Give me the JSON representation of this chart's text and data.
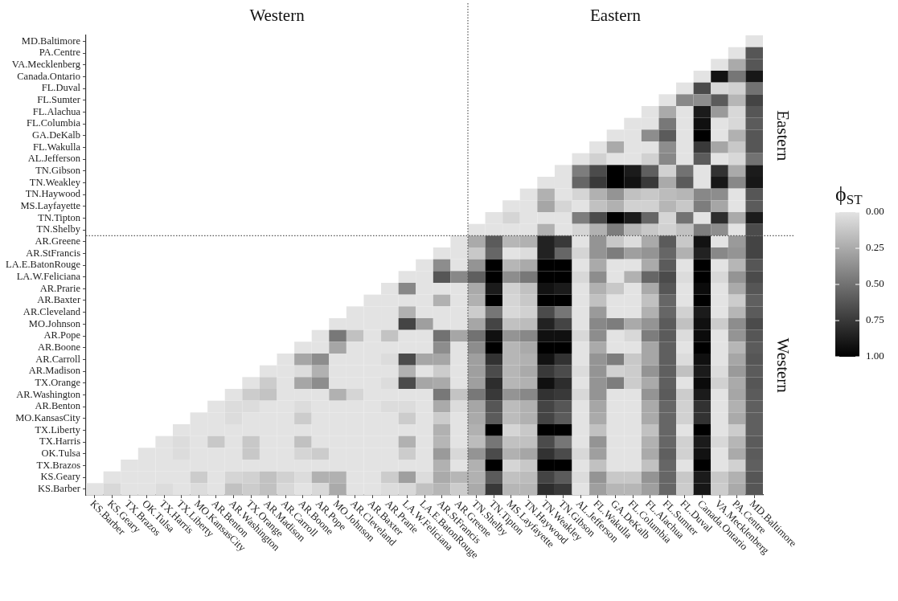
{
  "chart_data": {
    "type": "heatmap",
    "categories": [
      "KS.Barber",
      "KS.Geary",
      "TX.Brazos",
      "OK.Tulsa",
      "TX.Harris",
      "TX.Liberty",
      "MO.KansasCity",
      "AR.Benton",
      "AR.Washington",
      "TX.Orange",
      "AR.Madison",
      "AR.Carroll",
      "AR.Boone",
      "AR.Pope",
      "MO.Johnson",
      "AR.Cleveland",
      "AR.Baxter",
      "AR.Prarie",
      "LA.W.Feliciana",
      "LA.E.BatonRouge",
      "AR.StFrancis",
      "AR.Greene",
      "TN.Shelby",
      "TN.Tipton",
      "MS.Layfayette",
      "TN.Haywood",
      "TN.Weakley",
      "TN.Gibson",
      "AL.Jefferson",
      "FL.Wakulla",
      "GA.DeKalb",
      "FL.Columbia",
      "FL.Alachua",
      "FL.Sumter",
      "FL.Duval",
      "Canada.Ontario",
      "VA.Mecklenberg",
      "PA.Centre",
      "MD.Baltimore"
    ],
    "y_categories": [
      "MD.Baltimore",
      "PA.Centre",
      "VA.Mecklenberg",
      "Canada.Ontario",
      "FL.Duval",
      "FL.Sumter",
      "FL.Alachua",
      "FL.Columbia",
      "GA.DeKalb",
      "FL.Wakulla",
      "AL.Jefferson",
      "TN.Gibson",
      "TN.Weakley",
      "TN.Haywood",
      "MS.Layfayette",
      "TN.Tipton",
      "TN.Shelby",
      "AR.Greene",
      "AR.StFrancis",
      "LA.E.BatonRouge",
      "LA.W.Feliciana",
      "AR.Prarie",
      "AR.Baxter",
      "AR.Cleveland",
      "MO.Johnson",
      "AR.Pope",
      "AR.Boone",
      "AR.Carroll",
      "AR.Madison",
      "TX.Orange",
      "AR.Washington",
      "AR.Benton",
      "MO.KansasCity",
      "TX.Liberty",
      "TX.Harris",
      "OK.Tulsa",
      "TX.Brazos",
      "KS.Geary",
      "KS.Barber"
    ],
    "cells": [
      [
        null,
        null,
        null,
        null,
        null,
        null,
        null,
        null,
        null,
        null,
        null,
        null,
        null,
        null,
        null,
        null,
        null,
        null,
        null,
        null,
        null,
        null,
        null,
        null,
        null,
        null,
        null,
        null,
        null,
        null,
        null,
        null,
        null,
        null,
        null,
        null,
        null,
        null,
        0
      ],
      [
        null,
        null,
        null,
        null,
        null,
        null,
        null,
        null,
        null,
        null,
        null,
        null,
        null,
        null,
        null,
        null,
        null,
        null,
        null,
        null,
        null,
        null,
        null,
        null,
        null,
        null,
        null,
        null,
        null,
        null,
        null,
        null,
        null,
        null,
        null,
        null,
        null,
        0,
        0.62
      ],
      [
        null,
        null,
        null,
        null,
        null,
        null,
        null,
        null,
        null,
        null,
        null,
        null,
        null,
        null,
        null,
        null,
        null,
        null,
        null,
        null,
        null,
        null,
        null,
        null,
        null,
        null,
        null,
        null,
        null,
        null,
        null,
        null,
        null,
        null,
        null,
        null,
        0,
        0.25,
        0.62
      ],
      [
        null,
        null,
        null,
        null,
        null,
        null,
        null,
        null,
        null,
        null,
        null,
        null,
        null,
        null,
        null,
        null,
        null,
        null,
        null,
        null,
        null,
        null,
        null,
        null,
        null,
        null,
        null,
        null,
        null,
        null,
        null,
        null,
        null,
        null,
        null,
        0,
        0.92,
        0.48,
        0.9
      ],
      [
        null,
        null,
        null,
        null,
        null,
        null,
        null,
        null,
        null,
        null,
        null,
        null,
        null,
        null,
        null,
        null,
        null,
        null,
        null,
        null,
        null,
        null,
        null,
        null,
        null,
        null,
        null,
        null,
        null,
        null,
        null,
        null,
        null,
        null,
        0,
        0.67,
        0.05,
        0.08,
        0.5
      ],
      [
        null,
        null,
        null,
        null,
        null,
        null,
        null,
        null,
        null,
        null,
        null,
        null,
        null,
        null,
        null,
        null,
        null,
        null,
        null,
        null,
        null,
        null,
        null,
        null,
        null,
        null,
        null,
        null,
        null,
        null,
        null,
        null,
        null,
        0,
        0.4,
        0.38,
        0.6,
        0.2,
        0.7
      ],
      [
        null,
        null,
        null,
        null,
        null,
        null,
        null,
        null,
        null,
        null,
        null,
        null,
        null,
        null,
        null,
        null,
        null,
        null,
        null,
        null,
        null,
        null,
        null,
        null,
        null,
        null,
        null,
        null,
        null,
        null,
        null,
        null,
        0,
        0.25,
        0,
        0.88,
        0.32,
        0.05,
        0.62
      ],
      [
        null,
        null,
        null,
        null,
        null,
        null,
        null,
        null,
        null,
        null,
        null,
        null,
        null,
        null,
        null,
        null,
        null,
        null,
        null,
        null,
        null,
        null,
        null,
        null,
        null,
        null,
        null,
        null,
        null,
        null,
        null,
        0,
        0,
        0.47,
        0,
        0.93,
        0,
        0.05,
        0.6
      ],
      [
        null,
        null,
        null,
        null,
        null,
        null,
        null,
        null,
        null,
        null,
        null,
        null,
        null,
        null,
        null,
        null,
        null,
        null,
        null,
        null,
        null,
        null,
        null,
        null,
        null,
        null,
        null,
        null,
        null,
        null,
        0,
        0,
        0.38,
        0.6,
        0,
        1,
        0,
        0.22,
        0.62
      ],
      [
        null,
        null,
        null,
        null,
        null,
        null,
        null,
        null,
        null,
        null,
        null,
        null,
        null,
        null,
        null,
        null,
        null,
        null,
        null,
        null,
        null,
        null,
        null,
        null,
        null,
        null,
        null,
        null,
        null,
        0,
        0.25,
        0,
        0,
        0.38,
        0,
        0.75,
        0.27,
        0.12,
        0.62
      ],
      [
        null,
        null,
        null,
        null,
        null,
        null,
        null,
        null,
        null,
        null,
        null,
        null,
        null,
        null,
        null,
        null,
        null,
        null,
        null,
        null,
        null,
        null,
        null,
        null,
        null,
        null,
        null,
        null,
        0,
        0.08,
        0,
        0,
        0.08,
        0.4,
        0,
        0.6,
        0,
        0.05,
        0.5
      ],
      [
        null,
        null,
        null,
        null,
        null,
        null,
        null,
        null,
        null,
        null,
        null,
        null,
        null,
        null,
        null,
        null,
        null,
        null,
        null,
        null,
        null,
        null,
        null,
        null,
        null,
        null,
        null,
        0,
        0.45,
        0.67,
        1,
        0.88,
        0.58,
        0.08,
        0.5,
        0,
        0.78,
        0.25,
        0.88
      ],
      [
        null,
        null,
        null,
        null,
        null,
        null,
        null,
        null,
        null,
        null,
        null,
        null,
        null,
        null,
        null,
        null,
        null,
        null,
        null,
        null,
        null,
        null,
        null,
        null,
        null,
        null,
        0,
        0,
        0.55,
        0.75,
        1,
        0.92,
        0.75,
        0.25,
        0.6,
        0,
        0.9,
        0.4,
        0.9
      ],
      [
        null,
        null,
        null,
        null,
        null,
        null,
        null,
        null,
        null,
        null,
        null,
        null,
        null,
        null,
        null,
        null,
        null,
        null,
        null,
        null,
        null,
        null,
        null,
        null,
        null,
        0,
        0.22,
        0,
        0.06,
        0.22,
        0.35,
        0.15,
        0.12,
        0.17,
        0.2,
        0.4,
        0.38,
        0,
        0.62
      ],
      [
        null,
        null,
        null,
        null,
        null,
        null,
        null,
        null,
        null,
        null,
        null,
        null,
        null,
        null,
        null,
        null,
        null,
        null,
        null,
        null,
        null,
        null,
        null,
        null,
        0,
        0,
        0.27,
        0.06,
        0,
        0.15,
        0.22,
        0.08,
        0.08,
        0.2,
        0.12,
        0.45,
        0.27,
        0,
        0.6
      ],
      [
        null,
        null,
        null,
        null,
        null,
        null,
        null,
        null,
        null,
        null,
        null,
        null,
        null,
        null,
        null,
        null,
        null,
        null,
        null,
        null,
        null,
        null,
        null,
        0,
        0.06,
        0,
        0,
        0,
        0.45,
        0.67,
        1,
        0.88,
        0.55,
        0.06,
        0.5,
        0,
        0.8,
        0.25,
        0.88
      ],
      [
        null,
        null,
        null,
        null,
        null,
        null,
        null,
        null,
        null,
        null,
        null,
        null,
        null,
        null,
        null,
        null,
        null,
        null,
        null,
        null,
        null,
        null,
        0,
        0,
        0,
        0,
        0.22,
        0,
        0.06,
        0.22,
        0.45,
        0.2,
        0.12,
        0.08,
        0.15,
        0.45,
        0.38,
        0,
        0.67
      ],
      [
        null,
        null,
        null,
        null,
        null,
        null,
        null,
        null,
        null,
        null,
        null,
        null,
        null,
        null,
        null,
        null,
        null,
        null,
        null,
        null,
        null,
        0,
        0.25,
        0.6,
        0.2,
        0.22,
        0.85,
        0.75,
        0,
        0.35,
        0.12,
        0.03,
        0.25,
        0.6,
        0.12,
        0.92,
        0,
        0.32,
        0.7
      ],
      [
        null,
        null,
        null,
        null,
        null,
        null,
        null,
        null,
        null,
        null,
        null,
        null,
        null,
        null,
        null,
        null,
        null,
        null,
        null,
        null,
        0,
        0,
        0.12,
        0.55,
        0,
        0.03,
        0.85,
        0.55,
        0.06,
        0.35,
        0.45,
        0.3,
        0.35,
        0.55,
        0.22,
        0.85,
        0.4,
        0.35,
        0.7
      ],
      [
        null,
        null,
        null,
        null,
        null,
        null,
        null,
        null,
        null,
        null,
        null,
        null,
        null,
        null,
        null,
        null,
        null,
        null,
        null,
        0,
        0.38,
        0,
        0.35,
        1,
        0.2,
        0.25,
        1,
        1,
        0,
        0.25,
        0,
        0,
        0.25,
        0.6,
        0,
        1,
        0,
        0.2,
        0.62
      ],
      [
        null,
        null,
        null,
        null,
        null,
        null,
        null,
        null,
        null,
        null,
        null,
        null,
        null,
        null,
        null,
        null,
        null,
        null,
        0,
        0,
        0.62,
        0.4,
        0.58,
        1,
        0.38,
        0.47,
        1,
        1,
        0.05,
        0.38,
        0,
        0.22,
        0.55,
        0.67,
        0.03,
        1,
        0.05,
        0.35,
        0.67
      ],
      [
        null,
        null,
        null,
        null,
        null,
        null,
        null,
        null,
        null,
        null,
        null,
        null,
        null,
        null,
        null,
        null,
        null,
        0,
        0.4,
        0,
        0,
        0,
        0.25,
        0.88,
        0.08,
        0.15,
        0.92,
        0.88,
        0,
        0.22,
        0.12,
        0,
        0.25,
        0.62,
        0,
        0.95,
        0,
        0.25,
        0.62
      ],
      [
        null,
        null,
        null,
        null,
        null,
        null,
        null,
        null,
        null,
        null,
        null,
        null,
        null,
        null,
        null,
        null,
        0,
        0,
        0,
        0,
        0.22,
        0,
        0.22,
        1,
        0.06,
        0.12,
        1,
        1,
        0,
        0.15,
        0,
        0,
        0.15,
        0.55,
        0,
        1,
        0,
        0.1,
        0.58
      ],
      [
        null,
        null,
        null,
        null,
        null,
        null,
        null,
        null,
        null,
        null,
        null,
        null,
        null,
        null,
        null,
        0,
        0,
        0,
        0.22,
        0,
        0,
        0,
        0.1,
        0.48,
        0.05,
        0.08,
        0.67,
        0.48,
        0,
        0.32,
        0,
        0,
        0.22,
        0.55,
        0.08,
        0.88,
        0,
        0.2,
        0.6
      ],
      [
        null,
        null,
        null,
        null,
        null,
        null,
        null,
        null,
        null,
        null,
        null,
        null,
        null,
        null,
        0,
        0,
        0,
        0,
        0.7,
        0.3,
        0,
        0,
        0.27,
        0.7,
        0.15,
        0.17,
        0.85,
        0.7,
        0,
        0.4,
        0.45,
        0.25,
        0.35,
        0.6,
        0.15,
        0.93,
        0.1,
        0.38,
        0.67
      ],
      [
        null,
        null,
        null,
        null,
        null,
        null,
        null,
        null,
        null,
        null,
        null,
        null,
        null,
        0,
        0.47,
        0.15,
        0,
        0.14,
        0,
        0,
        0.5,
        0.27,
        0.5,
        0.93,
        0.35,
        0.4,
        0.93,
        0.93,
        0.05,
        0.38,
        0,
        0.05,
        0.45,
        0.6,
        0.03,
        0.95,
        0,
        0.35,
        0.62
      ],
      [
        null,
        null,
        null,
        null,
        null,
        null,
        null,
        null,
        null,
        null,
        null,
        null,
        0,
        0,
        0.27,
        0,
        0,
        0,
        0,
        0,
        0.38,
        0,
        0.38,
        1,
        0.2,
        0.25,
        1,
        1,
        0,
        0.25,
        0,
        0,
        0.27,
        0.58,
        0,
        1,
        0,
        0.2,
        0.6
      ],
      [
        null,
        null,
        null,
        null,
        null,
        null,
        null,
        null,
        null,
        null,
        null,
        0,
        0.27,
        0.38,
        0,
        0,
        0,
        0.03,
        0.67,
        0.27,
        0.27,
        0,
        0.3,
        0.78,
        0.2,
        0.22,
        0.92,
        0.78,
        0,
        0.35,
        0.45,
        0.12,
        0.27,
        0.58,
        0.03,
        0.93,
        0,
        0.27,
        0.62
      ],
      [
        null,
        null,
        null,
        null,
        null,
        null,
        null,
        null,
        null,
        null,
        0,
        0,
        0.03,
        0.22,
        0,
        0,
        0,
        0,
        0.22,
        0,
        0.1,
        0,
        0.3,
        0.67,
        0.2,
        0.25,
        0.75,
        0.67,
        0.03,
        0.35,
        0.08,
        0.1,
        0.35,
        0.58,
        0.15,
        0.88,
        0.03,
        0.32,
        0.6
      ],
      [
        null,
        null,
        null,
        null,
        null,
        null,
        null,
        null,
        null,
        0,
        0.1,
        0,
        0.27,
        0.38,
        0,
        0,
        0,
        0.03,
        0.67,
        0.27,
        0.25,
        0,
        0.3,
        0.8,
        0.2,
        0.22,
        0.93,
        0.8,
        0,
        0.35,
        0.45,
        0.1,
        0.25,
        0.58,
        0,
        0.95,
        0.08,
        0.25,
        0.62
      ],
      [
        null,
        null,
        null,
        null,
        null,
        null,
        null,
        null,
        0,
        0.1,
        0.14,
        0,
        0,
        0,
        0.22,
        0.06,
        0,
        0,
        0,
        0,
        0.47,
        0.14,
        0.47,
        0.75,
        0.35,
        0.4,
        0.78,
        0.75,
        0.05,
        0.35,
        0,
        0,
        0.35,
        0.6,
        0.1,
        0.88,
        0,
        0.27,
        0.6
      ],
      [
        null,
        null,
        null,
        null,
        null,
        null,
        null,
        0,
        0.03,
        0.03,
        0,
        0,
        0.03,
        0,
        0,
        0,
        0,
        0.03,
        0.03,
        0,
        0.25,
        0.03,
        0.27,
        0.62,
        0.17,
        0.22,
        0.7,
        0.62,
        0,
        0.27,
        0,
        0,
        0.25,
        0.55,
        0.08,
        0.78,
        0,
        0.22,
        0.58
      ],
      [
        null,
        null,
        null,
        null,
        null,
        null,
        0,
        0,
        0.03,
        0,
        0,
        0,
        0.1,
        0,
        0,
        0,
        0,
        0,
        0.1,
        0,
        0.1,
        0,
        0.25,
        0.6,
        0.17,
        0.22,
        0.7,
        0.6,
        0,
        0.25,
        0,
        0,
        0.25,
        0.55,
        0.08,
        0.78,
        0,
        0.25,
        0.58
      ],
      [
        null,
        null,
        null,
        null,
        null,
        0,
        0,
        0,
        0,
        0,
        0,
        0,
        0,
        0,
        0,
        0,
        0,
        0,
        0,
        0,
        0.22,
        0,
        0.22,
        1,
        0.06,
        0.12,
        1,
        1,
        0,
        0.15,
        0,
        0,
        0.15,
        0.55,
        0,
        1,
        0,
        0.1,
        0.58
      ],
      [
        null,
        null,
        null,
        null,
        0,
        0.03,
        0,
        0.12,
        0,
        0.12,
        0,
        0,
        0.15,
        0,
        0,
        0,
        0,
        0,
        0.22,
        0,
        0.2,
        0,
        0.17,
        0.48,
        0.15,
        0.15,
        0.67,
        0.48,
        0,
        0.35,
        0,
        0,
        0.22,
        0.55,
        0.08,
        0.88,
        0.05,
        0.2,
        0.6
      ],
      [
        null,
        null,
        null,
        0,
        0,
        0.03,
        0,
        0,
        0,
        0.12,
        0,
        0,
        0.06,
        0.1,
        0,
        0,
        0,
        0,
        0.1,
        0,
        0.32,
        0.05,
        0.35,
        0.67,
        0.22,
        0.27,
        0.78,
        0.67,
        0.05,
        0.3,
        0,
        0,
        0.25,
        0.58,
        0.08,
        0.92,
        0,
        0.25,
        0.6
      ],
      [
        null,
        null,
        0,
        0,
        0,
        0,
        0,
        0,
        0,
        0,
        0,
        0,
        0,
        0,
        0,
        0,
        0,
        0,
        0,
        0,
        0.22,
        0,
        0.22,
        1,
        0.06,
        0.12,
        1,
        1,
        0,
        0.15,
        0,
        0,
        0.15,
        0.55,
        0,
        1,
        0,
        0.08,
        0.58
      ],
      [
        null,
        0,
        0,
        0,
        0,
        0,
        0.1,
        0,
        0.06,
        0.08,
        0.15,
        0.08,
        0.03,
        0.22,
        0.22,
        0,
        0,
        0.1,
        0.3,
        0.03,
        0.25,
        0.2,
        0.22,
        0.6,
        0.15,
        0.17,
        0.7,
        0.6,
        0.03,
        0.35,
        0.12,
        0.12,
        0.35,
        0.55,
        0.12,
        0.88,
        0.12,
        0.22,
        0.62
      ],
      [
        0,
        0.05,
        0,
        0,
        0.03,
        0,
        0.03,
        0,
        0.15,
        0.1,
        0.15,
        0.05,
        0,
        0.05,
        0.25,
        0,
        0,
        0.03,
        0.05,
        0.15,
        0.2,
        0.1,
        0.25,
        0.75,
        0.2,
        0.2,
        0.8,
        0.75,
        0,
        0.3,
        0.2,
        0.2,
        0.3,
        0.55,
        0.1,
        0.9,
        0.1,
        0.25,
        0.62
      ]
    ],
    "clim": [
      0,
      1
    ],
    "cticks": [
      {
        "value": 0,
        "label": "0.00"
      },
      {
        "value": 0.25,
        "label": "0.25"
      },
      {
        "value": 0.5,
        "label": "0.50"
      },
      {
        "value": 0.75,
        "label": "0.75"
      },
      {
        "value": 1,
        "label": "1.00"
      }
    ],
    "clabel": "ϕ$_{ST}$",
    "annotations": [
      "Western",
      "Eastern",
      "Eastern",
      "Western"
    ]
  }
}
